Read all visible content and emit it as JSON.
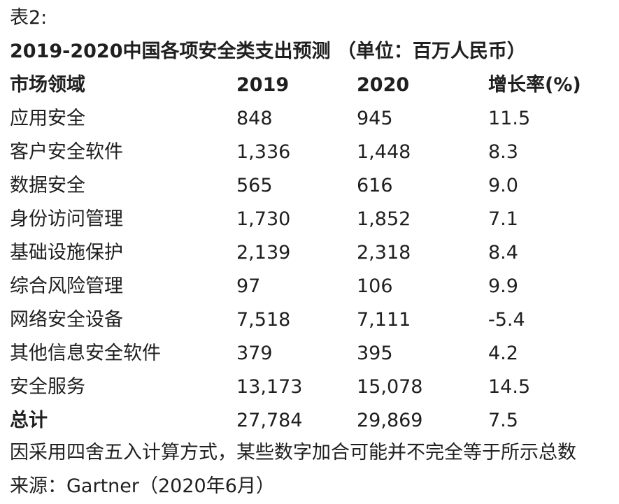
{
  "table_label": "表2:",
  "title": "2019-2020中国各项安全类支出预测 （单位：百万人民币）",
  "headers": [
    "市场领域",
    "2019",
    "2020",
    "增长率(%)"
  ],
  "rows": [
    [
      "应用安全",
      "848",
      "945",
      "11.5"
    ],
    [
      "客户安全软件",
      "1,336",
      "1,448",
      "8.3"
    ],
    [
      "数据安全",
      "565",
      "616",
      "9.0"
    ],
    [
      "身份访问管理",
      "1,730",
      "1,852",
      "7.1"
    ],
    [
      "基础设施保护",
      "2,139",
      "2,318",
      "8.4"
    ],
    [
      "综合风险管理",
      "97",
      "106",
      "9.9"
    ],
    [
      "网络安全设备",
      "7,518",
      "7,111",
      "-5.4"
    ],
    [
      "其他信息安全软件",
      "379",
      "395",
      "4.2"
    ],
    [
      "安全服务",
      "13,173",
      "15,078",
      "14.5"
    ]
  ],
  "total": [
    "总计",
    "27,784",
    "29,869",
    "7.5"
  ],
  "note": "因采用四舍五入计算方式，某些数字加合可能并不完全等于所示总数",
  "source": "来源：Gartner（2020年6月）"
}
